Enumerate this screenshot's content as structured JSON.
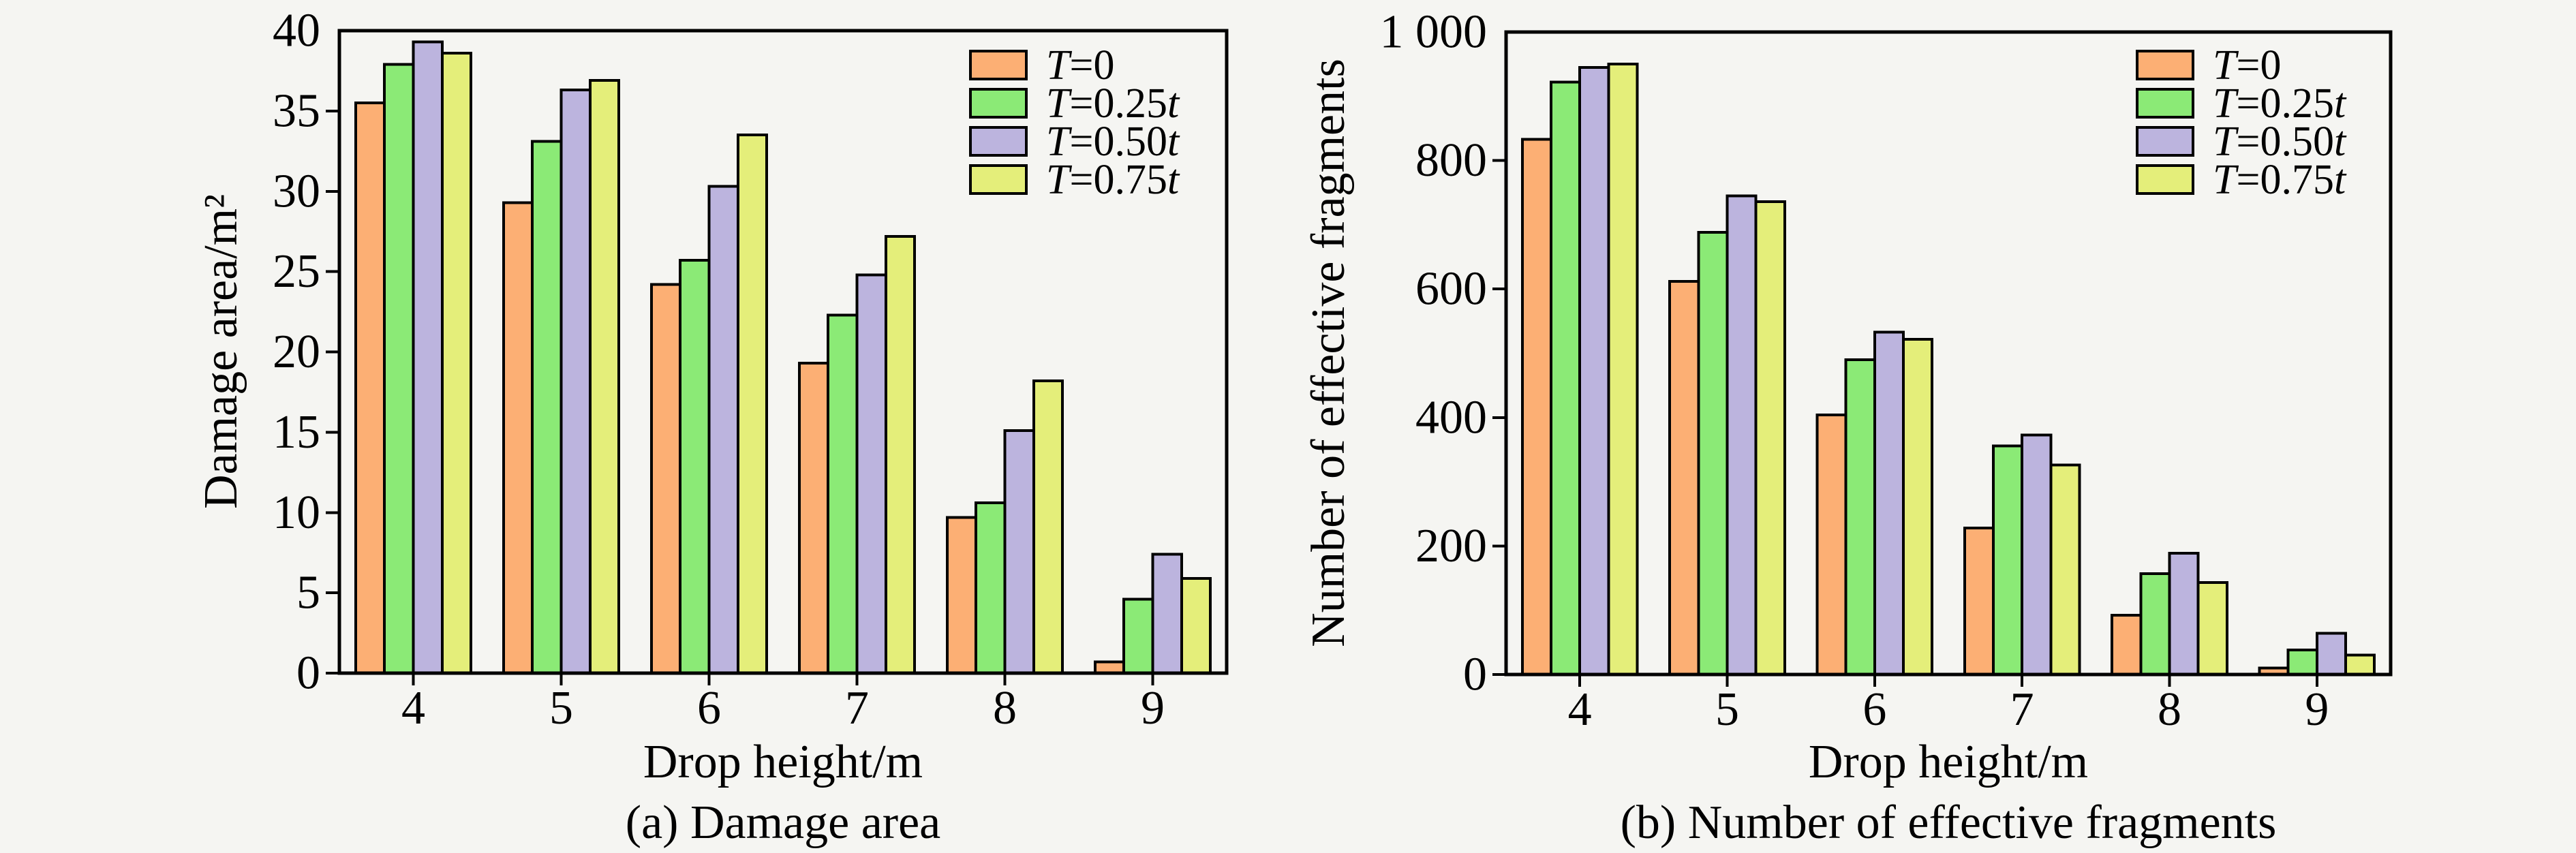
{
  "figure": {
    "background": "#f5f5f2",
    "axis_color": "#000000"
  },
  "legend": {
    "items": [
      {
        "label": "T=0",
        "color": "#fcaf74"
      },
      {
        "label": "T=0.25t",
        "color": "#8bea76"
      },
      {
        "label": "T=0.50t",
        "color": "#bcb4de"
      },
      {
        "label": "T=0.75t",
        "color": "#e4ee7a"
      }
    ],
    "position": "top-right-inside"
  },
  "chart_data": [
    {
      "type": "bar",
      "caption": "(a) Damage area",
      "xlabel": "Drop height/m",
      "ylabel": "Damage area/m²",
      "categories": [
        "4",
        "5",
        "6",
        "7",
        "8",
        "9"
      ],
      "series": [
        {
          "name": "T=0",
          "values": [
            35.5,
            29.3,
            24.2,
            19.3,
            9.7,
            0.7
          ]
        },
        {
          "name": "T=0.25t",
          "values": [
            37.9,
            33.1,
            25.7,
            22.3,
            10.6,
            4.6
          ]
        },
        {
          "name": "T=0.50t",
          "values": [
            39.3,
            36.3,
            30.3,
            24.8,
            15.1,
            7.4
          ]
        },
        {
          "name": "T=0.75t",
          "values": [
            38.6,
            36.9,
            33.5,
            27.2,
            18.2,
            5.9
          ]
        }
      ],
      "ylim": [
        0,
        40
      ],
      "yticks": [
        {
          "v": 0,
          "label": "0"
        },
        {
          "v": 5,
          "label": "5"
        },
        {
          "v": 10,
          "label": "10"
        },
        {
          "v": 15,
          "label": "15"
        },
        {
          "v": 20,
          "label": "20"
        },
        {
          "v": 25,
          "label": "25"
        },
        {
          "v": 30,
          "label": "30"
        },
        {
          "v": 35,
          "label": "35"
        },
        {
          "v": 40,
          "label": "40"
        }
      ],
      "grid": false
    },
    {
      "type": "bar",
      "caption": "(b) Number of effective fragments",
      "xlabel": "Drop height/m",
      "ylabel": "Number of effective fragments",
      "categories": [
        "4",
        "5",
        "6",
        "7",
        "8",
        "9"
      ],
      "series": [
        {
          "name": "T=0",
          "values": [
            833,
            612,
            404,
            228,
            92,
            10
          ]
        },
        {
          "name": "T=0.25t",
          "values": [
            922,
            688,
            490,
            356,
            157,
            38
          ]
        },
        {
          "name": "T=0.50t",
          "values": [
            945,
            745,
            533,
            373,
            189,
            64
          ]
        },
        {
          "name": "T=0.75t",
          "values": [
            950,
            736,
            522,
            326,
            143,
            30
          ]
        }
      ],
      "ylim": [
        0,
        1000
      ],
      "yticks": [
        {
          "v": 0,
          "label": "0"
        },
        {
          "v": 200,
          "label": "200"
        },
        {
          "v": 400,
          "label": "400"
        },
        {
          "v": 600,
          "label": "600"
        },
        {
          "v": 800,
          "label": "800"
        },
        {
          "v": 1000,
          "label": "1 000"
        }
      ],
      "grid": false
    }
  ]
}
